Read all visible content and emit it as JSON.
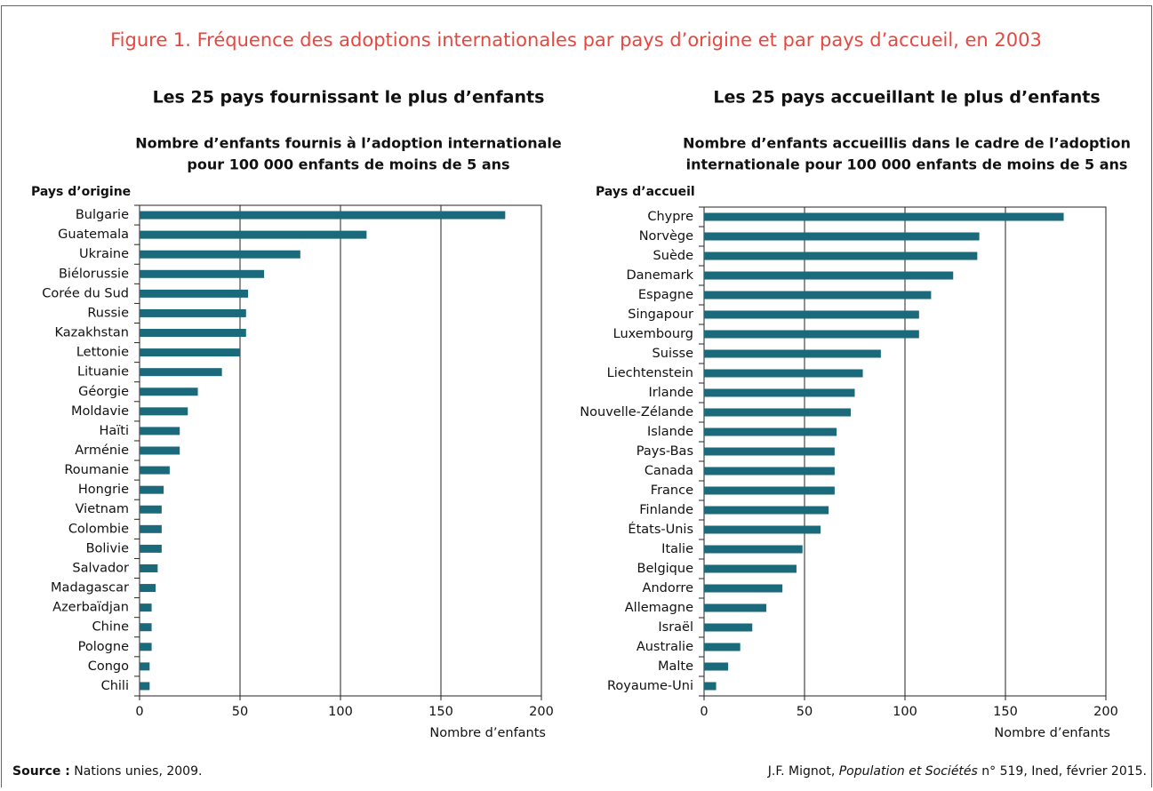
{
  "title": "Figure 1. Fréquence des adoptions internationales par pays d’origine et par pays d’accueil, en 2003",
  "chart_data": [
    {
      "type": "bar",
      "orientation": "horizontal",
      "title": "Les 25 pays fournissant le plus d’enfants",
      "subtitle": [
        "Nombre d’enfants fournis à l’adoption internationale",
        "pour 100 000 enfants de moins de 5 ans"
      ],
      "y_label": "Pays d’origine",
      "x_label": "Nombre d’enfants",
      "categories": [
        "Bulgarie",
        "Guatemala",
        "Ukraine",
        "Biélorussie",
        "Corée du Sud",
        "Russie",
        "Kazakhstan",
        "Lettonie",
        "Lituanie",
        "Géorgie",
        "Moldavie",
        "Haïti",
        "Arménie",
        "Roumanie",
        "Hongrie",
        "Vietnam",
        "Colombie",
        "Bolivie",
        "Salvador",
        "Madagascar",
        "Azerbaïdjan",
        "Chine",
        "Pologne",
        "Congo",
        "Chili"
      ],
      "values": [
        182,
        113,
        80,
        62,
        54,
        53,
        53,
        50,
        41,
        29,
        24,
        20,
        20,
        15,
        12,
        11,
        11,
        11,
        9,
        8,
        6,
        6,
        6,
        5,
        5
      ],
      "color": "#1b6a7b",
      "xlim": [
        0,
        200
      ],
      "xticks": [
        0,
        50,
        100,
        150,
        200
      ],
      "grid": true
    },
    {
      "type": "bar",
      "orientation": "horizontal",
      "title": "Les 25 pays accueillant le plus d’enfants",
      "subtitle": [
        "Nombre d’enfants accueillis dans le cadre de l’adoption",
        "internationale pour 100 000 enfants de moins de 5 ans"
      ],
      "y_label": "Pays d’accueil",
      "x_label": "Nombre d’enfants",
      "categories": [
        "Chypre",
        "Norvège",
        "Suède",
        "Danemark",
        "Espagne",
        "Singapour",
        "Luxembourg",
        "Suisse",
        "Liechtenstein",
        "Irlande",
        "Nouvelle-Zélande",
        "Islande",
        "Pays-Bas",
        "Canada",
        "France",
        "Finlande",
        "États-Unis",
        "Italie",
        "Belgique",
        "Andorre",
        "Allemagne",
        "Israël",
        "Australie",
        "Malte",
        "Royaume-Uni"
      ],
      "values": [
        179,
        137,
        136,
        124,
        113,
        107,
        107,
        88,
        79,
        75,
        73,
        66,
        65,
        65,
        65,
        62,
        58,
        49,
        46,
        39,
        31,
        24,
        18,
        12,
        6
      ],
      "color": "#1b6a7b",
      "xlim": [
        0,
        200
      ],
      "xticks": [
        0,
        50,
        100,
        150,
        200
      ],
      "grid": true
    }
  ],
  "source": {
    "label": "Source :",
    "text": " Nations unies, 2009."
  },
  "credit": {
    "author": "J.F. Mignot, ",
    "journal": "Population et Sociétés",
    "rest": " n° 519, Ined, février 2015."
  }
}
